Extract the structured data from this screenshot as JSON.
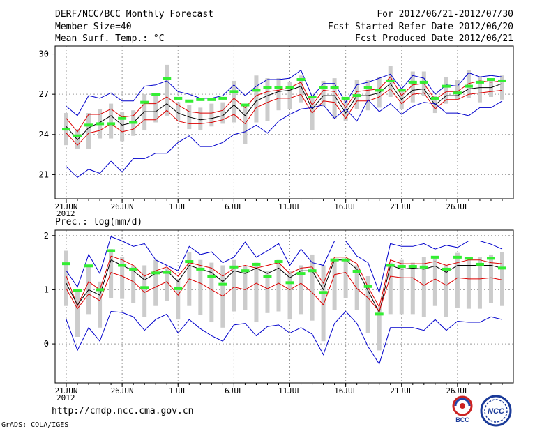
{
  "header": {
    "title": "DERF/NCC/BCC Monthly Forecast",
    "member_size": "Member Size=40",
    "period": "For 2012/06/21-2012/07/30",
    "start_ref": "Fcst Started Refer Date 2012/06/20",
    "produced": "Fcst Produced Date 2012/06/21"
  },
  "footer": {
    "url": "http://cmdp.ncc.cma.gov.cn",
    "credit": "GrADS: COLA/IGES",
    "logo_bcc": "BCC",
    "logo_ncc": "NCC"
  },
  "colors": {
    "ensemble_max_min": "#0000cc",
    "spread": "#dd0000",
    "mean": "#000000",
    "box": "#cccccc",
    "marker": "#33ee33"
  },
  "chart_data": [
    {
      "type": "line",
      "title": "Mean Surf. Temp.: °C",
      "ylim": [
        19.2,
        30.6
      ],
      "yticks": [
        21,
        24,
        27,
        30
      ],
      "x_ticks": [
        "21JUN",
        "26JUN",
        "1JUL",
        "6JUL",
        "11JUL",
        "16JUL",
        "21JUL",
        "26JUL"
      ],
      "x_tick_days": [
        1,
        6,
        11,
        16,
        21,
        26,
        31,
        36
      ],
      "x_year_label": "2012",
      "series": [
        {
          "name": "max",
          "color": "blue",
          "values": [
            26.1,
            25.4,
            26.9,
            26.7,
            27.1,
            26.5,
            26.5,
            27.6,
            27.7,
            28.0,
            27.2,
            27.0,
            26.7,
            26.7,
            26.9,
            27.7,
            26.9,
            27.6,
            28.1,
            28.1,
            28.2,
            28.8,
            26.8,
            27.8,
            27.8,
            26.4,
            27.7,
            27.9,
            28.2,
            28.5,
            27.4,
            28.4,
            28.2,
            27.0,
            27.7,
            27.6,
            28.6,
            28.3,
            28.4,
            28.3
          ]
        },
        {
          "name": "upper",
          "color": "red",
          "values": [
            25.2,
            24.2,
            25.5,
            25.5,
            25.9,
            25.3,
            25.4,
            26.3,
            26.3,
            26.8,
            26.2,
            25.7,
            25.6,
            25.6,
            25.8,
            26.7,
            26.0,
            26.9,
            27.2,
            27.3,
            27.5,
            27.9,
            26.2,
            27.3,
            27.2,
            26.0,
            27.2,
            27.3,
            27.4,
            28.3,
            26.9,
            27.7,
            27.8,
            26.6,
            27.2,
            27.2,
            27.8,
            28.0,
            27.9,
            28.0
          ]
        },
        {
          "name": "mean",
          "color": "black",
          "values": [
            24.6,
            23.6,
            24.5,
            24.9,
            25.4,
            24.7,
            24.9,
            25.7,
            25.7,
            26.3,
            25.6,
            25.3,
            25.1,
            25.2,
            25.4,
            26.2,
            25.4,
            26.5,
            26.9,
            27.2,
            27.3,
            27.6,
            25.9,
            26.9,
            26.9,
            25.6,
            26.9,
            26.9,
            27.1,
            27.8,
            26.6,
            27.3,
            27.4,
            26.2,
            26.9,
            26.9,
            27.4,
            27.5,
            27.5,
            27.8
          ]
        },
        {
          "name": "lower",
          "color": "red",
          "values": [
            24.1,
            23.2,
            24.1,
            24.3,
            24.8,
            24.2,
            24.4,
            25.1,
            25.1,
            25.8,
            25.0,
            24.8,
            24.8,
            24.9,
            25.1,
            25.5,
            24.8,
            26.0,
            26.4,
            26.7,
            26.7,
            27.0,
            25.6,
            26.5,
            26.4,
            25.2,
            26.5,
            26.5,
            26.8,
            27.4,
            26.3,
            27.0,
            27.1,
            25.9,
            26.6,
            26.6,
            27.0,
            27.1,
            27.2,
            27.3
          ]
        },
        {
          "name": "min",
          "color": "blue",
          "values": [
            21.6,
            20.8,
            21.4,
            21.1,
            22.0,
            21.2,
            22.2,
            22.2,
            22.6,
            22.6,
            23.4,
            23.9,
            23.1,
            23.1,
            23.4,
            24.0,
            24.2,
            24.7,
            24.1,
            25.0,
            25.5,
            25.9,
            26.0,
            26.2,
            25.2,
            25.9,
            25.0,
            26.6,
            25.7,
            26.3,
            25.5,
            26.1,
            26.4,
            26.3,
            25.6,
            25.6,
            25.4,
            26.0,
            26.0,
            26.5
          ]
        }
      ],
      "boxes": {
        "upper": [
          25.6,
          24.4,
          25.6,
          25.9,
          26.3,
          25.7,
          25.8,
          27.0,
          27.0,
          29.2,
          26.4,
          26.2,
          26.0,
          26.3,
          26.4,
          28.0,
          26.3,
          28.4,
          28.2,
          28.2,
          27.9,
          28.4,
          26.9,
          28.0,
          28.2,
          26.6,
          28.1,
          28.1,
          28.3,
          29.1,
          27.2,
          28.7,
          28.7,
          26.9,
          28.3,
          28.1,
          28.8,
          28.3,
          28.1,
          28.4
        ],
        "lower": [
          23.2,
          22.9,
          22.9,
          23.7,
          23.7,
          23.5,
          23.9,
          24.3,
          24.9,
          25.4,
          25.0,
          24.4,
          24.3,
          24.6,
          24.8,
          24.9,
          23.3,
          24.9,
          25.0,
          25.8,
          25.9,
          26.4,
          24.3,
          26.1,
          25.2,
          25.0,
          25.9,
          25.8,
          26.0,
          26.8,
          25.9,
          26.4,
          26.9,
          25.6,
          26.3,
          26.6,
          26.7,
          26.4,
          26.8,
          26.6
        ]
      },
      "markers": [
        24.4,
        23.9,
        24.7,
        24.8,
        24.8,
        25.2,
        24.9,
        26.4,
        27.0,
        28.2,
        26.7,
        26.5,
        26.6,
        26.6,
        26.7,
        27.2,
        26.2,
        27.3,
        27.5,
        27.5,
        27.5,
        28.1,
        26.8,
        27.5,
        27.5,
        26.7,
        26.9,
        27.5,
        27.3,
        28.0,
        27.3,
        27.9,
        27.9,
        26.7,
        27.6,
        27.1,
        27.6,
        27.9,
        28.1,
        28.0
      ]
    },
    {
      "type": "line",
      "title": "Prec.: log(mm/d)",
      "ylim": [
        -0.72,
        2.1
      ],
      "yticks": [
        0,
        1,
        2
      ],
      "x_ticks": [
        "21JUN",
        "26JUN",
        "1JUL",
        "6JUL",
        "11JUL",
        "16JUL",
        "21JUL",
        "26JUL"
      ],
      "x_tick_days": [
        1,
        6,
        11,
        16,
        21,
        26,
        31,
        36
      ],
      "x_year_label": "2012",
      "series": [
        {
          "name": "max",
          "color": "blue",
          "values": [
            1.35,
            1.05,
            1.65,
            1.3,
            1.98,
            1.9,
            1.8,
            1.85,
            1.55,
            1.45,
            1.35,
            1.8,
            1.65,
            1.7,
            1.5,
            1.6,
            1.88,
            1.6,
            1.72,
            1.85,
            1.45,
            1.75,
            1.5,
            1.45,
            1.9,
            1.9,
            1.62,
            1.5,
            0.95,
            1.85,
            1.8,
            1.8,
            1.85,
            1.75,
            1.82,
            1.78,
            1.9,
            1.9,
            1.84,
            1.75
          ]
        },
        {
          "name": "upper",
          "color": "red",
          "values": [
            1.25,
            0.7,
            1.15,
            1.0,
            1.62,
            1.55,
            1.45,
            1.25,
            1.35,
            1.42,
            1.25,
            1.5,
            1.45,
            1.4,
            1.25,
            1.4,
            1.45,
            1.4,
            1.45,
            1.5,
            1.3,
            1.4,
            1.42,
            1.12,
            1.6,
            1.6,
            1.48,
            1.05,
            0.68,
            1.55,
            1.48,
            1.48,
            1.48,
            1.52,
            1.45,
            1.5,
            1.55,
            1.55,
            1.5,
            1.48
          ]
        },
        {
          "name": "mean",
          "color": "black",
          "values": [
            1.12,
            0.72,
            1.0,
            0.9,
            1.55,
            1.45,
            1.35,
            1.18,
            1.3,
            1.35,
            1.15,
            1.45,
            1.38,
            1.32,
            1.15,
            1.35,
            1.3,
            1.4,
            1.3,
            1.4,
            1.22,
            1.35,
            1.35,
            1.0,
            1.55,
            1.55,
            1.38,
            0.98,
            0.58,
            1.45,
            1.38,
            1.4,
            1.38,
            1.44,
            1.32,
            1.45,
            1.45,
            1.45,
            1.45,
            1.4
          ]
        },
        {
          "name": "lower",
          "color": "red",
          "values": [
            1.02,
            0.65,
            0.92,
            0.8,
            1.32,
            1.25,
            1.15,
            0.95,
            1.05,
            1.15,
            0.9,
            1.2,
            1.12,
            1.0,
            0.88,
            1.05,
            1.0,
            1.12,
            1.02,
            1.12,
            1.0,
            1.12,
            0.95,
            0.72,
            1.28,
            1.32,
            1.02,
            0.85,
            0.6,
            1.25,
            1.22,
            1.22,
            1.08,
            1.2,
            1.08,
            1.22,
            1.2,
            1.2,
            1.22,
            1.18
          ]
        },
        {
          "name": "min",
          "color": "blue",
          "values": [
            0.45,
            -0.12,
            0.3,
            0.05,
            0.6,
            0.58,
            0.5,
            0.25,
            0.45,
            0.55,
            0.2,
            0.45,
            0.28,
            0.15,
            0.05,
            0.35,
            0.38,
            0.15,
            0.32,
            0.35,
            0.2,
            0.3,
            0.18,
            -0.2,
            0.38,
            0.6,
            0.38,
            -0.05,
            -0.37,
            0.3,
            0.3,
            0.3,
            0.25,
            0.45,
            0.25,
            0.42,
            0.4,
            0.4,
            0.5,
            0.45
          ]
        }
      ],
      "boxes": {
        "upper": [
          1.72,
          1.0,
          1.45,
          1.15,
          1.75,
          1.6,
          1.45,
          1.45,
          1.55,
          1.4,
          1.2,
          1.7,
          1.55,
          1.5,
          1.45,
          1.55,
          1.45,
          1.5,
          1.35,
          1.55,
          1.35,
          1.45,
          1.65,
          1.45,
          1.55,
          1.55,
          1.45,
          1.25,
          0.68,
          1.5,
          1.55,
          1.5,
          1.6,
          1.6,
          1.45,
          1.68,
          1.6,
          1.6,
          1.65,
          1.7
        ]
      },
      "markers": [
        1.48,
        0.98,
        1.44,
        1.0,
        1.72,
        1.45,
        1.38,
        1.04,
        1.31,
        1.32,
        1.02,
        1.52,
        1.38,
        1.25,
        1.1,
        1.42,
        1.35,
        1.47,
        1.24,
        1.52,
        1.13,
        1.3,
        1.35,
        0.95,
        1.55,
        1.55,
        1.34,
        1.06,
        0.55,
        1.45,
        1.43,
        1.43,
        1.42,
        1.6,
        1.38,
        1.6,
        1.58,
        1.47,
        1.58,
        1.4
      ]
    }
  ]
}
